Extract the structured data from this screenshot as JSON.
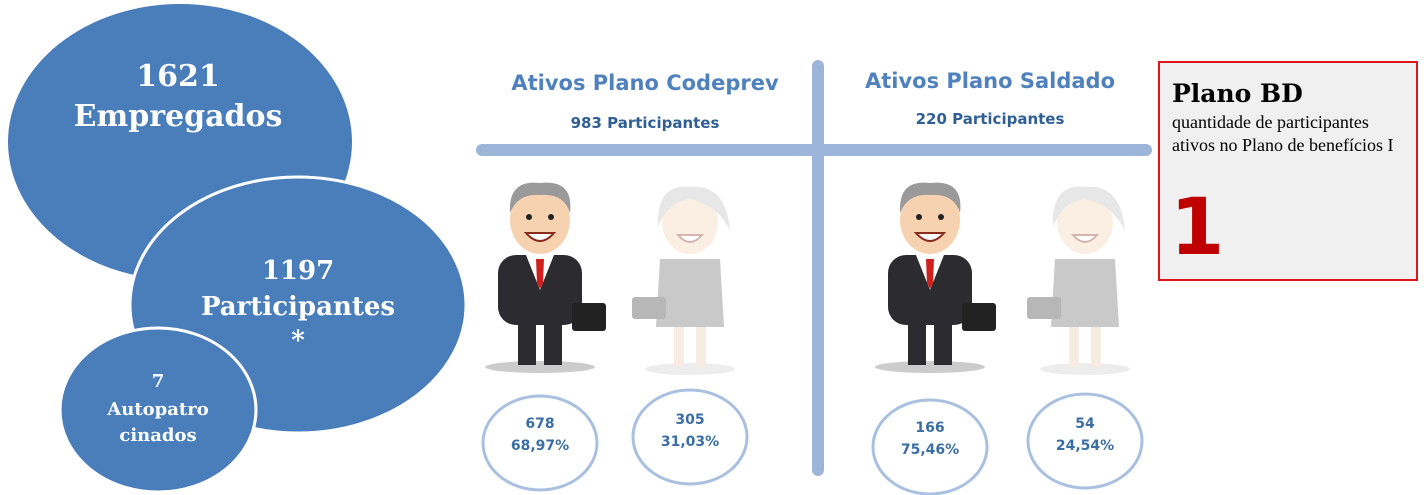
{
  "bubbles": [
    {
      "number": "1621",
      "lines": [
        "Empregados"
      ]
    },
    {
      "number": "1197",
      "lines": [
        "Participantes",
        "*"
      ]
    },
    {
      "number": "7",
      "lines": [
        "Autopatro",
        "cinados"
      ]
    }
  ],
  "plans": [
    {
      "title": "Ativos Plano Codeprev",
      "subtitle": "983 Participantes",
      "groups": [
        {
          "count": "678",
          "percent": "68,97%"
        },
        {
          "count": "305",
          "percent": "31,03%"
        }
      ]
    },
    {
      "title": "Ativos Plano Saldado",
      "subtitle": "220 Participantes",
      "groups": [
        {
          "count": "166",
          "percent": "75,46%"
        },
        {
          "count": "54",
          "percent": "24,54%"
        }
      ]
    }
  ],
  "box": {
    "title": "Plano BD",
    "text": "quantidade de participantes ativos no Plano de benefícios I",
    "value": "1"
  }
}
